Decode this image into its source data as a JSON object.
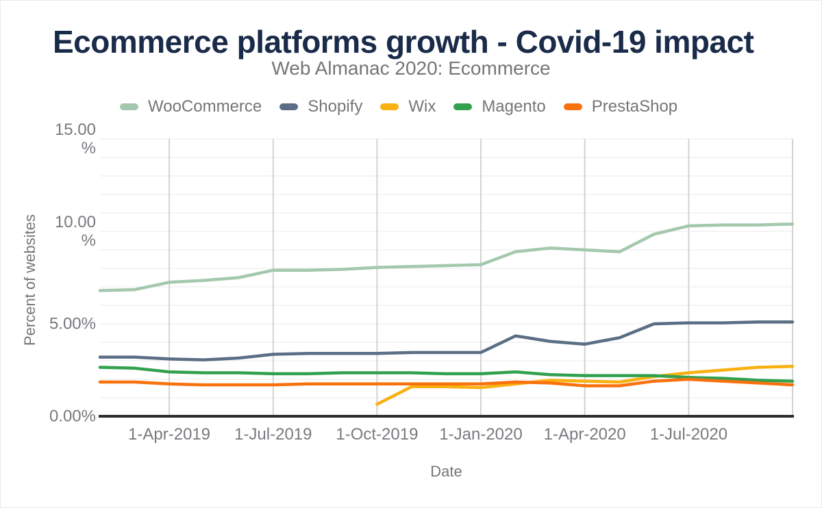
{
  "title": {
    "text": "Ecommerce platforms growth - Covid-19 impact",
    "color": "#1a2b49"
  },
  "subtitle": {
    "text": "Web Almanac 2020: Ecommerce",
    "color": "#757575"
  },
  "axes": {
    "y_title": "Percent of websites",
    "x_title": "Date",
    "y_ticks": [
      {
        "value": 15,
        "label": "15.00\n%"
      },
      {
        "value": 10,
        "label": "10.00\n%"
      },
      {
        "value": 5,
        "label": "5.00%"
      },
      {
        "value": 0,
        "label": "0.00%"
      }
    ],
    "x_ticks": [
      {
        "index": 2,
        "label": "1-Apr-2019"
      },
      {
        "index": 5,
        "label": "1-Jul-2019"
      },
      {
        "index": 8,
        "label": "1-Oct-2019"
      },
      {
        "index": 11,
        "label": "1-Jan-2020"
      },
      {
        "index": 14,
        "label": "1-Apr-2020"
      },
      {
        "index": 17,
        "label": "1-Jul-2020"
      }
    ],
    "x_gridline_indices": [
      2,
      5,
      8,
      11,
      14,
      17,
      20
    ]
  },
  "style": {
    "grid_h": "#e9e9e9",
    "grid_v": "#d3d3d3",
    "axis_line": "#2b2c2e",
    "text_gray": "#757575",
    "title_navy": "#1a2b49"
  },
  "chart_data": {
    "type": "line",
    "title": "Ecommerce platforms growth - Covid-19 impact",
    "subtitle": "Web Almanac 2020: Ecommerce",
    "xlabel": "Date",
    "ylabel": "Percent of websites",
    "unit": "%",
    "ylim": [
      0,
      15
    ],
    "grid": true,
    "legend_position": "top",
    "x": [
      "1-Feb-2019",
      "1-Mar-2019",
      "1-Apr-2019",
      "1-May-2019",
      "1-Jun-2019",
      "1-Jul-2019",
      "1-Aug-2019",
      "1-Sep-2019",
      "1-Oct-2019",
      "1-Nov-2019",
      "1-Dec-2019",
      "1-Jan-2020",
      "1-Feb-2020",
      "1-Mar-2020",
      "1-Apr-2020",
      "1-May-2020",
      "1-Jun-2020",
      "1-Jul-2020",
      "1-Aug-2020",
      "1-Sep-2020",
      "1-Oct-2020"
    ],
    "series": [
      {
        "name": "WooCommerce",
        "color": "#a3c8ad",
        "values": [
          6.8,
          6.85,
          7.25,
          7.35,
          7.5,
          7.9,
          7.9,
          7.95,
          8.05,
          8.1,
          8.15,
          8.2,
          8.9,
          9.1,
          9.0,
          8.9,
          9.85,
          10.3,
          10.35,
          10.35,
          10.4
        ]
      },
      {
        "name": "Shopify",
        "color": "#5b6e86",
        "values": [
          3.2,
          3.2,
          3.1,
          3.05,
          3.15,
          3.35,
          3.4,
          3.4,
          3.4,
          3.45,
          3.45,
          3.45,
          4.35,
          4.05,
          3.9,
          4.25,
          5.0,
          5.05,
          5.05,
          5.1,
          5.1
        ]
      },
      {
        "name": "Wix",
        "color": "#f9b011",
        "values": [
          null,
          null,
          null,
          null,
          null,
          null,
          null,
          null,
          0.65,
          1.6,
          1.6,
          1.55,
          1.75,
          1.95,
          1.9,
          1.85,
          2.15,
          2.35,
          2.5,
          2.65,
          2.7
        ]
      },
      {
        "name": "Magento",
        "color": "#32a14f",
        "values": [
          2.65,
          2.6,
          2.4,
          2.35,
          2.35,
          2.3,
          2.3,
          2.35,
          2.35,
          2.35,
          2.3,
          2.3,
          2.4,
          2.25,
          2.2,
          2.2,
          2.2,
          2.1,
          2.05,
          1.95,
          1.9
        ]
      },
      {
        "name": "PrestaShop",
        "color": "#f8710d",
        "values": [
          1.85,
          1.85,
          1.75,
          1.7,
          1.7,
          1.7,
          1.75,
          1.75,
          1.75,
          1.75,
          1.75,
          1.75,
          1.85,
          1.8,
          1.65,
          1.65,
          1.9,
          2.0,
          1.9,
          1.8,
          1.7
        ]
      }
    ]
  }
}
